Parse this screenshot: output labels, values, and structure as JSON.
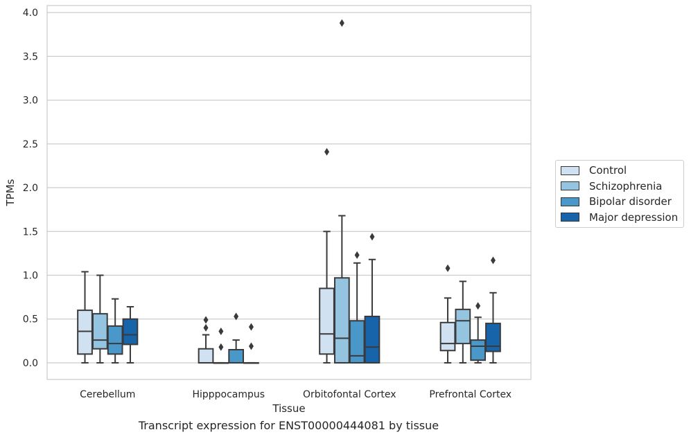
{
  "chart_data": {
    "type": "box",
    "xlabel": "Tissue",
    "ylabel": "TPMs",
    "caption": "Transcript expression for ENST00000444081 by tissue",
    "ylim": [
      -0.19,
      4.08
    ],
    "yticks": [
      "0.0",
      "0.5",
      "1.0",
      "1.5",
      "2.0",
      "2.5",
      "3.0",
      "3.5",
      "4.0"
    ],
    "grid": true,
    "legend_placement": "right",
    "categories": [
      "Cerebellum",
      "Hipppocampus",
      "Orbitofontal Cortex",
      "Prefrontal Cortex"
    ],
    "series": [
      {
        "name": "Control",
        "color": "#d0e1f2",
        "boxes": [
          {
            "whislo": 0.0,
            "q1": 0.1,
            "med": 0.36,
            "q3": 0.6,
            "whishi": 1.04,
            "fliers": []
          },
          {
            "whislo": 0.0,
            "q1": 0.0,
            "med": 0.0,
            "q3": 0.16,
            "whishi": 0.32,
            "fliers": [
              0.4,
              0.49
            ]
          },
          {
            "whislo": 0.0,
            "q1": 0.1,
            "med": 0.33,
            "q3": 0.85,
            "whishi": 1.5,
            "fliers": [
              2.41
            ]
          },
          {
            "whislo": 0.0,
            "q1": 0.14,
            "med": 0.22,
            "q3": 0.46,
            "whishi": 0.74,
            "fliers": [
              1.08
            ]
          }
        ]
      },
      {
        "name": "Schizophrenia",
        "color": "#94c4df",
        "boxes": [
          {
            "whislo": 0.0,
            "q1": 0.16,
            "med": 0.26,
            "q3": 0.56,
            "whishi": 1.0,
            "fliers": []
          },
          {
            "whislo": 0.0,
            "q1": 0.0,
            "med": 0.0,
            "q3": 0.0,
            "whishi": 0.0,
            "fliers": [
              0.18,
              0.36
            ]
          },
          {
            "whislo": 0.0,
            "q1": 0.0,
            "med": 0.28,
            "q3": 0.97,
            "whishi": 1.68,
            "fliers": [
              3.88
            ]
          },
          {
            "whislo": 0.0,
            "q1": 0.22,
            "med": 0.48,
            "q3": 0.61,
            "whishi": 0.93,
            "fliers": []
          }
        ]
      },
      {
        "name": "Bipolar disorder",
        "color": "#4a98c9",
        "boxes": [
          {
            "whislo": 0.0,
            "q1": 0.1,
            "med": 0.22,
            "q3": 0.42,
            "whishi": 0.73,
            "fliers": []
          },
          {
            "whislo": 0.0,
            "q1": 0.0,
            "med": 0.0,
            "q3": 0.15,
            "whishi": 0.26,
            "fliers": [
              0.53
            ]
          },
          {
            "whislo": 0.0,
            "q1": 0.0,
            "med": 0.08,
            "q3": 0.48,
            "whishi": 1.14,
            "fliers": [
              1.23
            ]
          },
          {
            "whislo": 0.0,
            "q1": 0.03,
            "med": 0.19,
            "q3": 0.26,
            "whishi": 0.52,
            "fliers": [
              0.65
            ]
          }
        ]
      },
      {
        "name": "Major depression",
        "color": "#1764ab",
        "boxes": [
          {
            "whislo": 0.0,
            "q1": 0.21,
            "med": 0.32,
            "q3": 0.5,
            "whishi": 0.64,
            "fliers": []
          },
          {
            "whislo": 0.0,
            "q1": 0.0,
            "med": 0.0,
            "q3": 0.0,
            "whishi": 0.0,
            "fliers": [
              0.19,
              0.41
            ]
          },
          {
            "whislo": 0.0,
            "q1": 0.0,
            "med": 0.18,
            "q3": 0.53,
            "whishi": 1.18,
            "fliers": [
              1.44
            ]
          },
          {
            "whislo": 0.0,
            "q1": 0.13,
            "med": 0.19,
            "q3": 0.45,
            "whishi": 0.8,
            "fliers": [
              1.17
            ]
          }
        ]
      }
    ]
  }
}
